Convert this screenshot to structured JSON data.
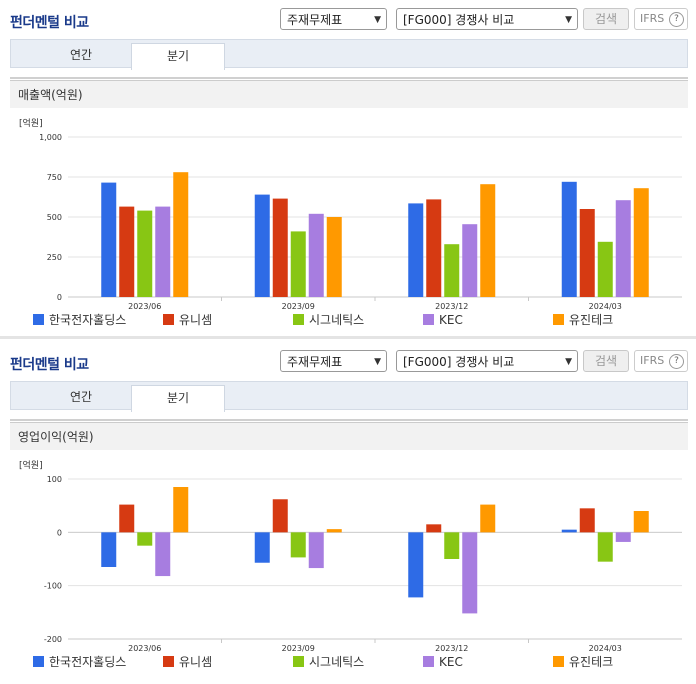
{
  "panels": [
    {
      "title": "펀더멘털 비교",
      "select1": "주재무제표",
      "select2": "[FG000] 경쟁사 비교",
      "search_label": "검색",
      "ifrs_label": "IFRS",
      "ifrs_help": "?",
      "tabs": [
        "연간",
        "분기"
      ],
      "active_tab": "분기",
      "section": "매출액(억원)",
      "unit": "[억원]"
    },
    {
      "title": "펀더멘털 비교",
      "select1": "주재무제표",
      "select2": "[FG000] 경쟁사 비교",
      "search_label": "검색",
      "ifrs_label": "IFRS",
      "ifrs_help": "?",
      "tabs": [
        "연간",
        "분기"
      ],
      "active_tab": "분기",
      "section": "영업이익(억원)",
      "unit": "[억원]"
    }
  ],
  "colors": [
    "#2e6be6",
    "#d63a12",
    "#88c614",
    "#a77de0",
    "#ff9900"
  ],
  "chart_data": [
    {
      "type": "bar",
      "title": "매출액(억원)",
      "categories": [
        "2023/06",
        "2023/09",
        "2023/12",
        "2024/03"
      ],
      "ylim": [
        0,
        1000
      ],
      "yticks": [
        0,
        250,
        500,
        750,
        1000
      ],
      "ytick_labels": [
        "0",
        "250",
        "500",
        "750",
        "1,000"
      ],
      "ylabel": "[억원]",
      "series": [
        {
          "name": "한국전자홀딩스",
          "values": [
            715,
            640,
            585,
            720
          ]
        },
        {
          "name": "유니셈",
          "values": [
            565,
            615,
            610,
            550
          ]
        },
        {
          "name": "시그네틱스",
          "values": [
            540,
            410,
            330,
            345
          ]
        },
        {
          "name": "KEC",
          "values": [
            565,
            520,
            455,
            605
          ]
        },
        {
          "name": "유진테크",
          "values": [
            780,
            500,
            705,
            680
          ]
        }
      ]
    },
    {
      "type": "bar",
      "title": "영업이익(억원)",
      "categories": [
        "2023/06",
        "2023/09",
        "2023/12",
        "2024/03"
      ],
      "ylim": [
        -200,
        100
      ],
      "yticks": [
        -200,
        -100,
        0,
        100
      ],
      "ytick_labels": [
        "-200",
        "-100",
        "0",
        "100"
      ],
      "ylabel": "[억원]",
      "series": [
        {
          "name": "한국전자홀딩스",
          "values": [
            -65,
            -57,
            -122,
            5
          ]
        },
        {
          "name": "유니셈",
          "values": [
            52,
            62,
            15,
            45
          ]
        },
        {
          "name": "시그네틱스",
          "values": [
            -25,
            -47,
            -50,
            -55
          ]
        },
        {
          "name": "KEC",
          "values": [
            -82,
            -67,
            -152,
            -18
          ]
        },
        {
          "name": "유진테크",
          "values": [
            85,
            6,
            52,
            40
          ]
        }
      ]
    }
  ]
}
